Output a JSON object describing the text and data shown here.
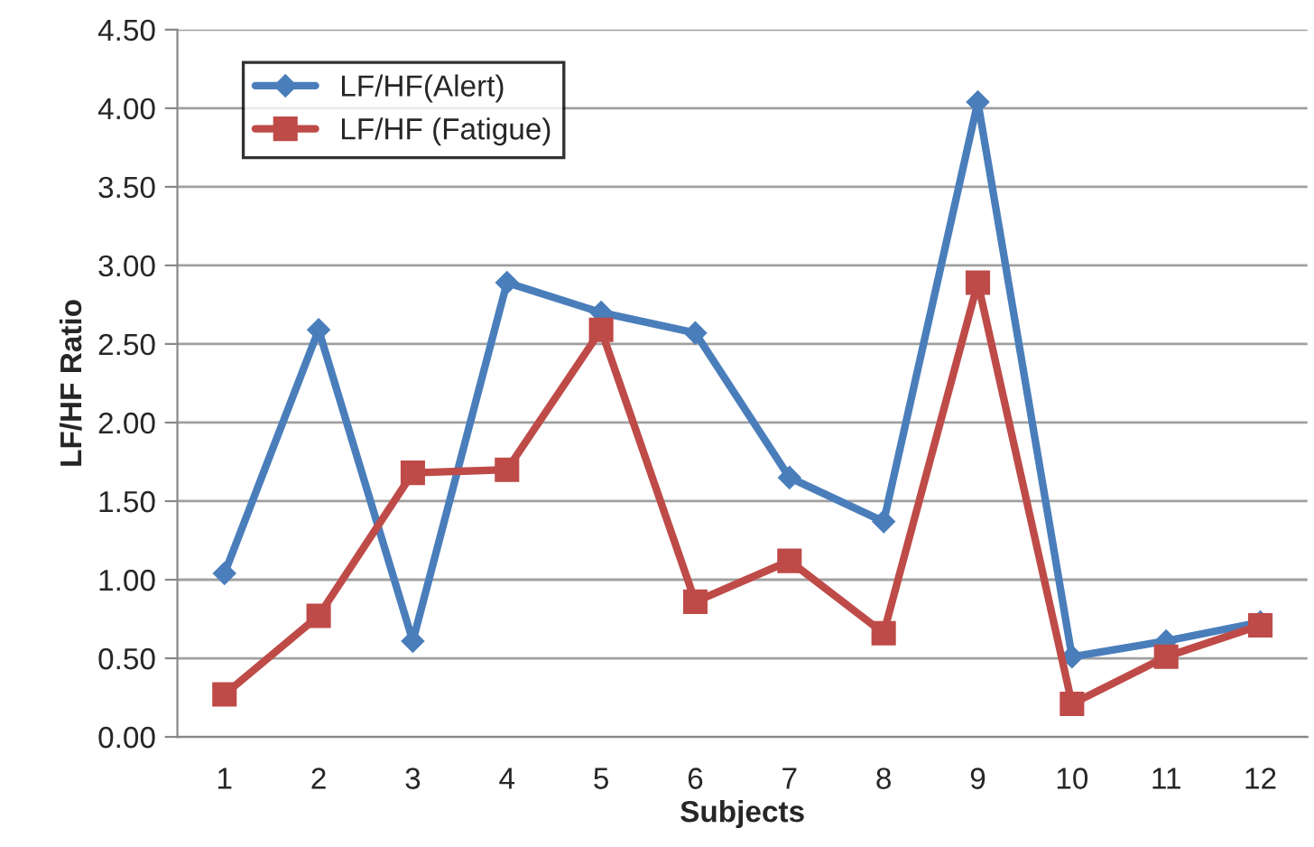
{
  "chart_data": {
    "type": "line",
    "xlabel": "Subjects",
    "ylabel": "LF/HF Ratio",
    "categories": [
      "1",
      "2",
      "3",
      "4",
      "5",
      "6",
      "7",
      "8",
      "9",
      "10",
      "11",
      "12"
    ],
    "series": [
      {
        "name": "LF/HF(Alert)",
        "color": "#4a7ebb",
        "marker": "diamond",
        "values": [
          1.04,
          2.59,
          0.61,
          2.89,
          2.7,
          2.57,
          1.65,
          1.37,
          4.04,
          0.51,
          0.61,
          0.73
        ]
      },
      {
        "name": "LF/HF (Fatigue)",
        "color": "#be4b48",
        "marker": "square",
        "values": [
          0.27,
          0.77,
          1.68,
          1.7,
          2.59,
          0.86,
          1.12,
          0.66,
          2.89,
          0.21,
          0.51,
          0.71
        ]
      }
    ],
    "ylim": [
      0,
      4.5
    ],
    "yticks": [
      {
        "value": 0,
        "label": "0.00"
      },
      {
        "value": 0.5,
        "label": "0.50"
      },
      {
        "value": 1,
        "label": "1.00"
      },
      {
        "value": 1.5,
        "label": "1.50"
      },
      {
        "value": 2,
        "label": "2.00"
      },
      {
        "value": 2.5,
        "label": "2.50"
      },
      {
        "value": 3,
        "label": "3.00"
      },
      {
        "value": 3.5,
        "label": "3.50"
      },
      {
        "value": 4,
        "label": "4.00"
      },
      {
        "value": 4.5,
        "label": "4.50"
      }
    ],
    "grid": "y",
    "legend": "top left",
    "line_style": "solid"
  }
}
